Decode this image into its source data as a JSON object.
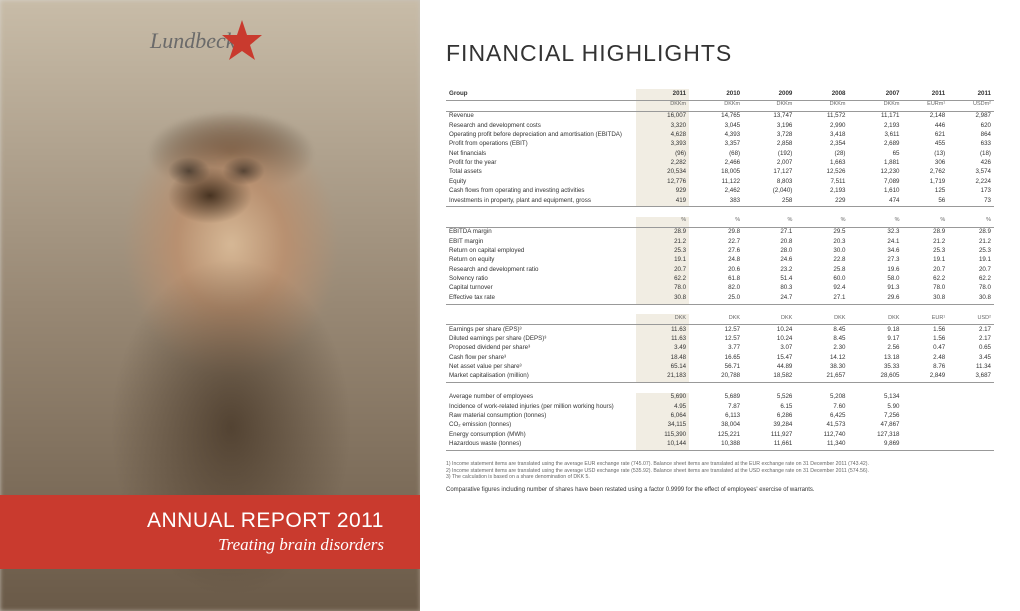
{
  "brand": {
    "name": "Lundbeck"
  },
  "left": {
    "title": "ANNUAL REPORT 2011",
    "tagline": "Treating brain disorders"
  },
  "colors": {
    "accent_red": "#c93a2e",
    "highlight_col": "#f1ede3",
    "page_bg": "#ffffff",
    "left_bg": "#d8d4cc"
  },
  "page": {
    "title": "FINANCIAL HIGHLIGHTS"
  },
  "table": {
    "group_label": "Group",
    "year_headers": [
      "2011",
      "2010",
      "2009",
      "2008",
      "2007",
      "2011",
      "2011"
    ],
    "unit_headers": [
      "DKKm",
      "DKKm",
      "DKKm",
      "DKKm",
      "DKKm",
      "EURm¹",
      "USDm²"
    ],
    "blocks": [
      {
        "rows": [
          {
            "label": "Revenue",
            "v": [
              "16,007",
              "14,765",
              "13,747",
              "11,572",
              "11,171",
              "2,148",
              "2,987"
            ]
          },
          {
            "label": "Research and development costs",
            "v": [
              "3,320",
              "3,045",
              "3,196",
              "2,990",
              "2,193",
              "446",
              "620"
            ]
          },
          {
            "label": "Operating profit before depreciation and amortisation (EBITDA)",
            "v": [
              "4,628",
              "4,393",
              "3,728",
              "3,418",
              "3,611",
              "621",
              "864"
            ]
          },
          {
            "label": "Profit from operations (EBIT)",
            "v": [
              "3,393",
              "3,357",
              "2,858",
              "2,354",
              "2,689",
              "455",
              "633"
            ]
          },
          {
            "label": "Net financials",
            "v": [
              "(96)",
              "(68)",
              "(192)",
              "(28)",
              "65",
              "(13)",
              "(18)"
            ]
          },
          {
            "label": "Profit for the year",
            "v": [
              "2,282",
              "2,466",
              "2,007",
              "1,663",
              "1,881",
              "306",
              "426"
            ]
          },
          {
            "label": "Total assets",
            "v": [
              "20,534",
              "18,005",
              "17,127",
              "12,526",
              "12,230",
              "2,762",
              "3,574"
            ]
          },
          {
            "label": "Equity",
            "v": [
              "12,776",
              "11,122",
              "8,803",
              "7,511",
              "7,089",
              "1,719",
              "2,224"
            ]
          },
          {
            "label": "Cash flows from operating and investing activities",
            "v": [
              "929",
              "2,462",
              "(2,040)",
              "2,193",
              "1,610",
              "125",
              "173"
            ]
          },
          {
            "label": "Investments in property, plant and equipment, gross",
            "v": [
              "419",
              "383",
              "258",
              "229",
              "474",
              "56",
              "73"
            ]
          }
        ]
      },
      {
        "unit_row": [
          "%",
          "%",
          "%",
          "%",
          "%",
          "%",
          "%"
        ],
        "rows": [
          {
            "label": "EBITDA margin",
            "v": [
              "28.9",
              "29.8",
              "27.1",
              "29.5",
              "32.3",
              "28.9",
              "28.9"
            ]
          },
          {
            "label": "EBIT margin",
            "v": [
              "21.2",
              "22.7",
              "20.8",
              "20.3",
              "24.1",
              "21.2",
              "21.2"
            ]
          },
          {
            "label": "Return on capital employed",
            "v": [
              "25.3",
              "27.6",
              "28.0",
              "30.0",
              "34.6",
              "25.3",
              "25.3"
            ]
          },
          {
            "label": "Return on equity",
            "v": [
              "19.1",
              "24.8",
              "24.6",
              "22.8",
              "27.3",
              "19.1",
              "19.1"
            ]
          },
          {
            "label": "Research and development ratio",
            "v": [
              "20.7",
              "20.6",
              "23.2",
              "25.8",
              "19.6",
              "20.7",
              "20.7"
            ]
          },
          {
            "label": "Solvency ratio",
            "v": [
              "62.2",
              "61.8",
              "51.4",
              "60.0",
              "58.0",
              "62.2",
              "62.2"
            ]
          },
          {
            "label": "Capital turnover",
            "v": [
              "78.0",
              "82.0",
              "80.3",
              "92.4",
              "91.3",
              "78.0",
              "78.0"
            ]
          },
          {
            "label": "Effective tax rate",
            "v": [
              "30.8",
              "25.0",
              "24.7",
              "27.1",
              "29.6",
              "30.8",
              "30.8"
            ]
          }
        ]
      },
      {
        "unit_row": [
          "DKK",
          "DKK",
          "DKK",
          "DKK",
          "DKK",
          "EUR¹",
          "USD²"
        ],
        "rows": [
          {
            "label": "Earnings per share (EPS)³",
            "v": [
              "11.63",
              "12.57",
              "10.24",
              "8.45",
              "9.18",
              "1.56",
              "2.17"
            ]
          },
          {
            "label": "Diluted earnings per share (DEPS)³",
            "v": [
              "11.63",
              "12.57",
              "10.24",
              "8.45",
              "9.17",
              "1.56",
              "2.17"
            ]
          },
          {
            "label": "Proposed dividend per share³",
            "v": [
              "3.49",
              "3.77",
              "3.07",
              "2.30",
              "2.56",
              "0.47",
              "0.65"
            ]
          },
          {
            "label": "Cash flow per share³",
            "v": [
              "18.48",
              "16.65",
              "15.47",
              "14.12",
              "13.18",
              "2.48",
              "3.45"
            ]
          },
          {
            "label": "Net asset value per share³",
            "v": [
              "65.14",
              "56.71",
              "44.89",
              "38.30",
              "35.33",
              "8.76",
              "11.34"
            ]
          },
          {
            "label": "Market capitalisation (million)",
            "v": [
              "21,183",
              "20,788",
              "18,582",
              "21,657",
              "28,605",
              "2,849",
              "3,687"
            ]
          }
        ]
      },
      {
        "rows": [
          {
            "label": "Average number of employees",
            "v": [
              "5,690",
              "5,689",
              "5,526",
              "5,208",
              "5,134",
              "",
              ""
            ]
          },
          {
            "label": "Incidence of work-related injuries (per million working hours)",
            "v": [
              "4.95",
              "7.87",
              "6.15",
              "7.60",
              "5.90",
              "",
              ""
            ]
          },
          {
            "label": "Raw material consumption (tonnes)",
            "v": [
              "6,064",
              "6,113",
              "6,286",
              "6,425",
              "7,256",
              "",
              ""
            ]
          },
          {
            "label": "CO₂ emission (tonnes)",
            "v": [
              "34,115",
              "38,004",
              "39,284",
              "41,573",
              "47,867",
              "",
              ""
            ]
          },
          {
            "label": "Energy consumption (MWh)",
            "v": [
              "115,390",
              "125,221",
              "111,927",
              "112,740",
              "127,318",
              "",
              ""
            ]
          },
          {
            "label": "Hazardous waste (tonnes)",
            "v": [
              "10,144",
              "10,388",
              "11,661",
              "11,340",
              "9,869",
              "",
              ""
            ]
          }
        ]
      }
    ]
  },
  "footnotes": [
    "1) Income statement items are translated using the average EUR exchange rate (745.07). Balance sheet items are translated at the EUR exchange rate on 31 December 2011 (743.42).",
    "2) Income statement items are translated using the average USD exchange rate (535.92). Balance sheet items are translated at the USD exchange rate on 31 December 2011 (574.56).",
    "3) The calculation is based on a share denomination of DKK 5."
  ],
  "comparative": "Comparative figures including number of shares have been restated using a factor 0.9999 for the effect of employees' exercise of warrants."
}
